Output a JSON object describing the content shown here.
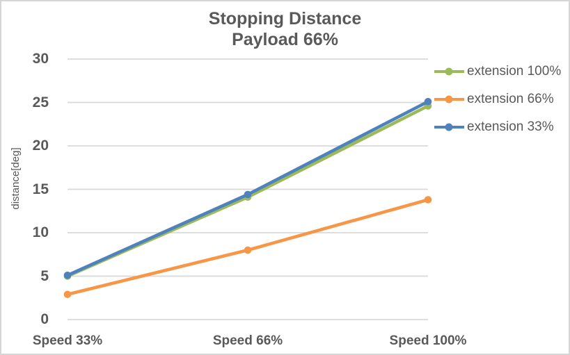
{
  "chart_data": {
    "type": "line",
    "title": "Stopping Distance",
    "subtitle": "Payload 66%",
    "ylabel": "distance[deg]",
    "categories": [
      "Speed 33%",
      "Speed 66%",
      "Speed 100%"
    ],
    "series": [
      {
        "name": "extension 100%",
        "color": "#9BBB59",
        "values": [
          5.0,
          14.1,
          24.6
        ]
      },
      {
        "name": "extension 66%",
        "color": "#F79646",
        "values": [
          2.9,
          8.0,
          13.8
        ]
      },
      {
        "name": "extension 33%",
        "color": "#4F81BD",
        "values": [
          5.1,
          14.4,
          25.1
        ]
      }
    ],
    "yticks": [
      0,
      5,
      10,
      15,
      20,
      25,
      30
    ],
    "ylim": [
      0,
      30
    ],
    "grid": true,
    "legend_position": "right",
    "marker": "circle"
  },
  "colors": {
    "text": "#595959",
    "gridline": "#D9D9D9",
    "border": "#D6D6D6",
    "background": "#FFFFFF"
  }
}
